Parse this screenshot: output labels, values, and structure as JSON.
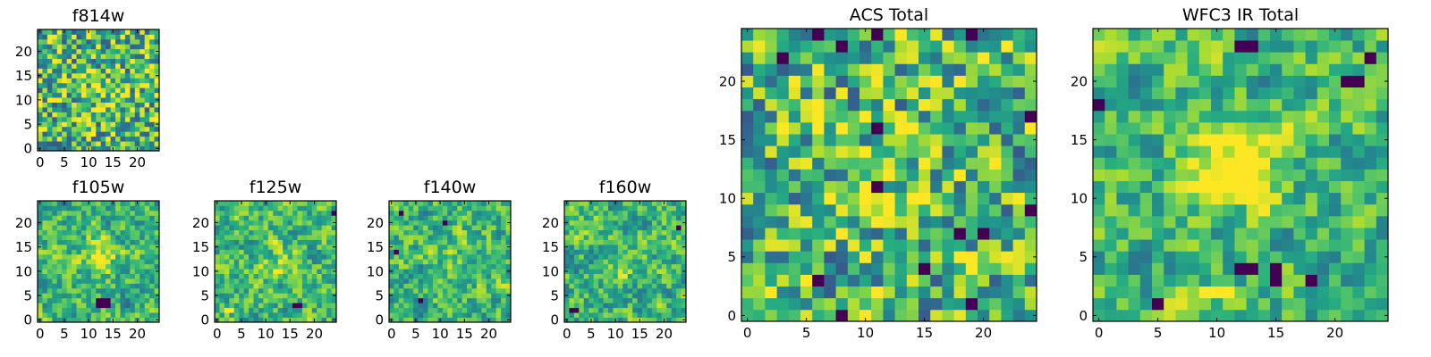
{
  "figure": {
    "description_colormap": "viridis"
  },
  "chart_data": [
    {
      "type": "heatmap",
      "title": "f814w",
      "colormap": "viridis",
      "grid_size": [
        25,
        25
      ],
      "xticks": [
        "0",
        "5",
        "10",
        "15",
        "20"
      ],
      "yticks": [
        "0",
        "5",
        "10",
        "15",
        "20"
      ],
      "xlim": [
        -0.5,
        24.5
      ],
      "ylim": [
        -0.5,
        24.5
      ],
      "pattern": "noisy",
      "peak": [
        12,
        12
      ],
      "peak_strength": 0.15,
      "dark_spots": [],
      "bright_spots": []
    },
    {
      "type": "heatmap",
      "title": "f105w",
      "colormap": "viridis",
      "grid_size": [
        25,
        25
      ],
      "xticks": [
        "0",
        "5",
        "10",
        "15",
        "20"
      ],
      "yticks": [
        "0",
        "5",
        "10",
        "15",
        "20"
      ],
      "xlim": [
        -0.5,
        24.5
      ],
      "ylim": [
        -0.5,
        24.5
      ],
      "pattern": "smooth",
      "peak": [
        13,
        13
      ],
      "peak_strength": 0.3,
      "dark_spots": [
        [
          12,
          4
        ],
        [
          13,
          4
        ],
        [
          14,
          4
        ],
        [
          12,
          3
        ],
        [
          13,
          3
        ],
        [
          14,
          3
        ]
      ],
      "bright_spots": []
    },
    {
      "type": "heatmap",
      "title": "f125w",
      "colormap": "viridis",
      "grid_size": [
        25,
        25
      ],
      "xticks": [
        "0",
        "5",
        "10",
        "15",
        "20"
      ],
      "yticks": [
        "0",
        "5",
        "10",
        "15",
        "20"
      ],
      "xlim": [
        -0.5,
        24.5
      ],
      "ylim": [
        -0.5,
        24.5
      ],
      "pattern": "smooth",
      "peak": [
        12,
        12
      ],
      "peak_strength": 0.15,
      "dark_spots": [
        [
          16,
          3
        ],
        [
          17,
          3
        ],
        [
          24,
          22
        ]
      ],
      "bright_spots": [
        [
          2,
          2
        ],
        [
          3,
          2
        ]
      ]
    },
    {
      "type": "heatmap",
      "title": "f140w",
      "colormap": "viridis",
      "grid_size": [
        25,
        25
      ],
      "xticks": [
        "0",
        "5",
        "10",
        "15",
        "20"
      ],
      "yticks": [
        "0",
        "5",
        "10",
        "15",
        "20"
      ],
      "xlim": [
        -0.5,
        24.5
      ],
      "ylim": [
        -0.5,
        24.5
      ],
      "pattern": "smooth",
      "peak": [
        13,
        12
      ],
      "peak_strength": 0.15,
      "dark_spots": [
        [
          11,
          20
        ],
        [
          2,
          22
        ],
        [
          6,
          4
        ],
        [
          1,
          14
        ]
      ],
      "bright_spots": []
    },
    {
      "type": "heatmap",
      "title": "f160w",
      "colormap": "viridis",
      "grid_size": [
        25,
        25
      ],
      "xticks": [
        "0",
        "5",
        "10",
        "15",
        "20"
      ],
      "yticks": [
        "0",
        "5",
        "10",
        "15",
        "20"
      ],
      "xlim": [
        -0.5,
        24.5
      ],
      "ylim": [
        -0.5,
        24.5
      ],
      "pattern": "smooth",
      "peak": [
        12,
        12
      ],
      "peak_strength": 0.2,
      "dark_spots": [
        [
          23,
          19
        ],
        [
          1,
          2
        ],
        [
          2,
          2
        ]
      ],
      "bright_spots": []
    },
    {
      "type": "heatmap",
      "title": "ACS Total",
      "colormap": "viridis",
      "grid_size": [
        25,
        25
      ],
      "xticks": [
        "0",
        "5",
        "10",
        "15",
        "20"
      ],
      "yticks": [
        "0",
        "5",
        "10",
        "15",
        "20"
      ],
      "xlim": [
        -0.5,
        24.5
      ],
      "ylim": [
        -0.5,
        24.5
      ],
      "pattern": "noisy",
      "peak": [
        12,
        12
      ],
      "peak_strength": 0.2,
      "dark_spots": [
        [
          8,
          0
        ],
        [
          6,
          3
        ],
        [
          11,
          11
        ],
        [
          18,
          7
        ],
        [
          20,
          7
        ],
        [
          15,
          4
        ],
        [
          24,
          9
        ],
        [
          3,
          22
        ],
        [
          6,
          24
        ],
        [
          11,
          24
        ],
        [
          19,
          24
        ],
        [
          24,
          17
        ],
        [
          19,
          1
        ],
        [
          8,
          23
        ],
        [
          11,
          16
        ]
      ],
      "bright_spots": [
        [
          2,
          2
        ],
        [
          6,
          16
        ],
        [
          14,
          10
        ],
        [
          10,
          5
        ],
        [
          16,
          20
        ],
        [
          20,
          22
        ]
      ]
    },
    {
      "type": "heatmap",
      "title": "WFC3 IR Total",
      "colormap": "viridis",
      "grid_size": [
        25,
        25
      ],
      "xticks": [
        "0",
        "5",
        "10",
        "15",
        "20"
      ],
      "yticks": [
        "0",
        "5",
        "10",
        "15",
        "20"
      ],
      "xlim": [
        -0.5,
        24.5
      ],
      "ylim": [
        -0.5,
        24.5
      ],
      "pattern": "smooth",
      "peak": [
        12,
        13
      ],
      "peak_strength": 0.45,
      "dark_spots": [
        [
          12,
          4
        ],
        [
          13,
          4
        ],
        [
          15,
          4
        ],
        [
          15,
          3
        ],
        [
          18,
          3
        ],
        [
          5,
          1
        ],
        [
          12,
          23
        ],
        [
          13,
          23
        ],
        [
          21,
          20
        ],
        [
          22,
          20
        ],
        [
          0,
          18
        ],
        [
          23,
          22
        ]
      ],
      "bright_spots": [
        [
          9,
          2
        ],
        [
          10,
          2
        ],
        [
          11,
          2
        ]
      ]
    }
  ]
}
